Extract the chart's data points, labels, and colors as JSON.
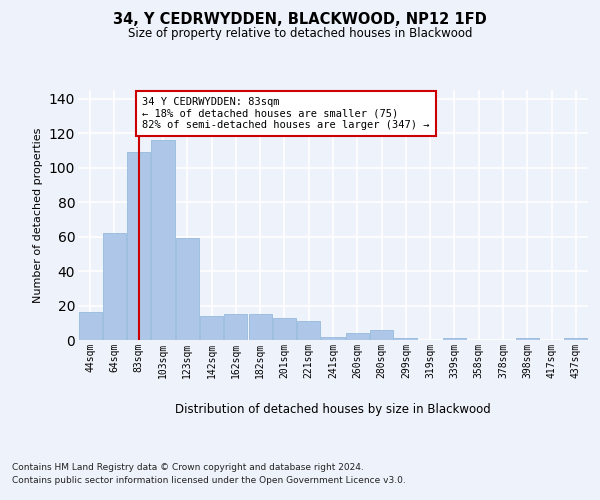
{
  "title": "34, Y CEDRWYDDEN, BLACKWOOD, NP12 1FD",
  "subtitle": "Size of property relative to detached houses in Blackwood",
  "xlabel": "Distribution of detached houses by size in Blackwood",
  "ylabel": "Number of detached properties",
  "footnote1": "Contains HM Land Registry data © Crown copyright and database right 2024.",
  "footnote2": "Contains public sector information licensed under the Open Government Licence v3.0.",
  "categories": [
    "44sqm",
    "64sqm",
    "83sqm",
    "103sqm",
    "123sqm",
    "142sqm",
    "162sqm",
    "182sqm",
    "201sqm",
    "221sqm",
    "241sqm",
    "260sqm",
    "280sqm",
    "299sqm",
    "319sqm",
    "339sqm",
    "358sqm",
    "378sqm",
    "398sqm",
    "417sqm",
    "437sqm"
  ],
  "values": [
    16,
    62,
    109,
    116,
    59,
    14,
    15,
    15,
    13,
    11,
    2,
    4,
    6,
    1,
    0,
    1,
    0,
    0,
    1,
    0,
    1
  ],
  "bar_color": "#aec6e8",
  "bar_edge_color": "#8ab4d8",
  "ylim": [
    0,
    145
  ],
  "yticks": [
    0,
    20,
    40,
    60,
    80,
    100,
    120,
    140
  ],
  "red_line_x": 2,
  "annotation_title": "34 Y CEDRWYDDEN: 83sqm",
  "annotation_line1": "← 18% of detached houses are smaller (75)",
  "annotation_line2": "82% of semi-detached houses are larger (347) →",
  "bg_color": "#eef2fa",
  "grid_color": "#ffffff",
  "annotation_box_color": "#ffffff",
  "annotation_border_color": "#cc0000"
}
